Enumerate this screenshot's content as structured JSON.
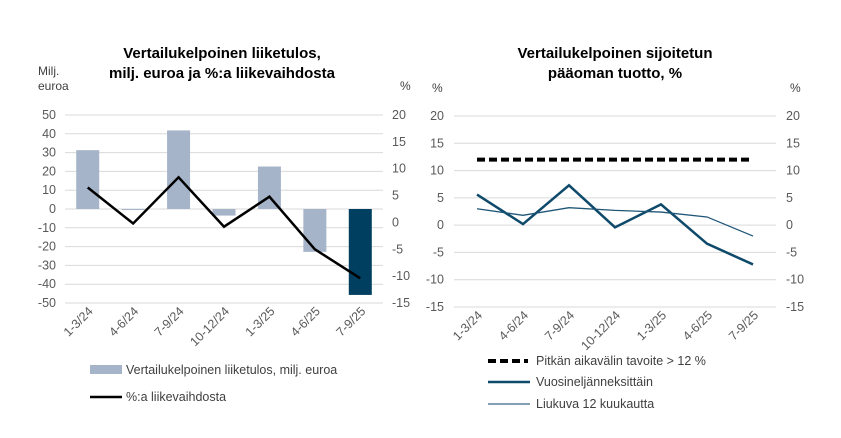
{
  "chart_data": [
    {
      "type": "bar",
      "title": [
        "Vertailukelpoinen liiketulos,",
        "milj. euroa ja %:a liikevaihdosta"
      ],
      "ylabel_left": [
        "Milj.",
        "euroa"
      ],
      "ylabel_right": "%",
      "categories": [
        "1-3/24",
        "4-6/24",
        "7-9/24",
        "10-12/24",
        "1-3/25",
        "4-6/25",
        "7-9/25"
      ],
      "ylim_left": [
        -50,
        50
      ],
      "yticks_left": [
        "50",
        "40",
        "30",
        "20",
        "10",
        "0",
        "-10",
        "-20",
        "-30",
        "-40",
        "-50"
      ],
      "ylim_right": [
        -15,
        20
      ],
      "yticks_right": [
        "20",
        "15",
        "10",
        "5",
        "0",
        "-5",
        "-10",
        "-15"
      ],
      "grid": true,
      "legend_position": "bottom",
      "series": [
        {
          "name": "Vertailukelpoinen liiketulos, milj. euroa",
          "type": "bar",
          "axis": "left",
          "color": "#a5b4c8",
          "highlight_color": "#003f5f",
          "values": [
            31.3,
            -0.5,
            41.8,
            -3.5,
            22.6,
            -22.8,
            -45.7
          ]
        },
        {
          "name": "%:a liikevaihdosta",
          "type": "line",
          "axis": "right",
          "color": "#000000",
          "values": [
            6.5,
            -0.2,
            8.4,
            -0.8,
            4.8,
            -5.0,
            -10.4
          ]
        }
      ]
    },
    {
      "type": "line",
      "title": [
        "Vertailukelpoinen sijoitetun",
        "pääoman tuotto, %"
      ],
      "ylabel_left": "%",
      "ylabel_right": "%",
      "categories": [
        "1-3/24",
        "4-6/24",
        "7-9/24",
        "10-12/24",
        "1-3/25",
        "4-6/25",
        "7-9/25"
      ],
      "ylim": [
        -15,
        20
      ],
      "yticks": [
        "20",
        "15",
        "10",
        "5",
        "0",
        "-5",
        "-10",
        "-15"
      ],
      "grid": true,
      "legend_position": "bottom",
      "series": [
        {
          "name": "Pitkän aikavälin tavoite > 12 %",
          "style": "dashed",
          "color": "#000000",
          "values": [
            12,
            12,
            12,
            12,
            12,
            12,
            12
          ]
        },
        {
          "name": "Vuosineljänneksittäin",
          "style": "thick",
          "color": "#0f4a6b",
          "values": [
            5.6,
            0.2,
            7.3,
            -0.4,
            3.8,
            -3.4,
            -7.2
          ]
        },
        {
          "name": "Liukuva 12 kuukautta",
          "style": "thin",
          "color": "#1f5677",
          "values": [
            3.0,
            1.8,
            3.2,
            2.7,
            2.4,
            1.5,
            -2.0
          ]
        }
      ]
    }
  ]
}
